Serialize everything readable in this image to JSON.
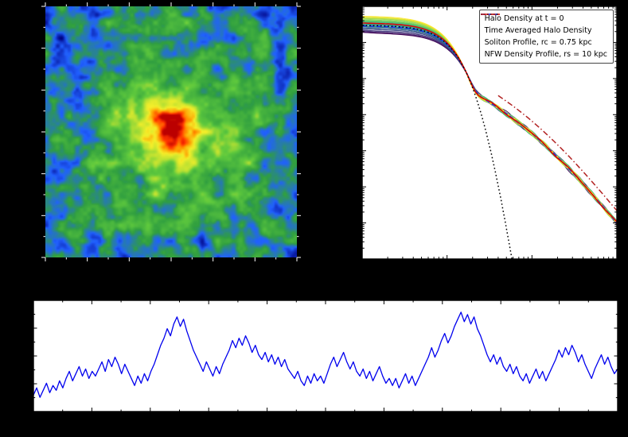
{
  "figure": {
    "background": "#000000",
    "panel_count": 3,
    "description": "Three-panel scientific figure: projected halo density map (top left), radial density profiles on log-log axes with legend (top right), and central density time series (bottom)."
  },
  "chart_data": [
    {
      "id": "density-map",
      "type": "heatmap",
      "title": "",
      "description": "2D projected density field of a fuzzy dark matter halo: turbulent granular interference pattern, green/yellow medium density, blue low-density filaments, compact red soliton core at center.",
      "seed": 1337,
      "field": {
        "base": 0.2,
        "core_amp": 0.52,
        "core_sigma": 0.13,
        "halo_amp": 0.27,
        "halo_sigma": 0.42,
        "noise_amp": 0.3
      },
      "noise_octaves": [
        [
          16,
          0.5
        ],
        [
          32,
          0.33
        ],
        [
          64,
          0.17
        ]
      ],
      "colormap_stops": [
        [
          0.0,
          "#000080"
        ],
        [
          0.16,
          "#2060ff"
        ],
        [
          0.32,
          "#2f9e3f"
        ],
        [
          0.5,
          "#5fc93d"
        ],
        [
          0.62,
          "#b8e032"
        ],
        [
          0.73,
          "#f4ee2a"
        ],
        [
          0.83,
          "#ff9900"
        ],
        [
          0.92,
          "#ff3300"
        ],
        [
          1.0,
          "#bb0000"
        ]
      ]
    },
    {
      "id": "density-profiles",
      "type": "line",
      "x_scale": "log",
      "y_scale": "log",
      "xlim": [
        0.1,
        100
      ],
      "ylim": [
        100,
        1000000000
      ],
      "xlabel": "",
      "ylabel": "",
      "grid": false,
      "model": {
        "soliton": {
          "rho0": 300000000.0,
          "rc": 0.75,
          "shape_coeff": 0.091,
          "shape_power": 8
        },
        "nfw": {
          "rhos": 1200000.0,
          "rs": 10
        },
        "nfw_line_scale": 2.2,
        "nfw_line_r_range": [
          4,
          100
        ],
        "soliton_line_r_range": [
          0.1,
          7
        ]
      },
      "r_kpc": [
        0.1,
        0.15,
        0.2,
        0.3,
        0.5,
        0.7,
        1,
        1.5,
        2,
        3,
        4,
        5,
        7,
        10,
        15,
        20,
        30,
        50,
        70,
        100
      ],
      "series": [
        {
          "name": "Halo Density at t = 0",
          "style": "solid",
          "color": "#e00000",
          "width": 1.5,
          "values": [
            330000000.0,
            325000000.0,
            320000000.0,
            300000000.0,
            250000000.0,
            190000000.0,
            105000000.0,
            30000000.0,
            6800000.0,
            2500000.0,
            1600000.0,
            1100000.0,
            610000.0,
            310000.0,
            130000.0,
            69000.0,
            26000.0,
            6900.0,
            3100.0,
            1000.0
          ]
        },
        {
          "name": "Time Averaged Halo Density",
          "style": "dashed",
          "color": "#1630ee",
          "width": 1.5,
          "values": [
            290000000.0,
            287000000.0,
            280000000.0,
            262000000.0,
            215000000.0,
            160000000.0,
            90000000.0,
            25000000.0,
            5800000.0,
            2400000.0,
            1550000.0,
            1080000.0,
            590000.0,
            300000.0,
            130000.0,
            67000.0,
            25000.0,
            6700.0,
            3000.0,
            990.0
          ]
        },
        {
          "name": "Soliton Profile, rc = 0.75 kpc",
          "style": "dotted",
          "color": "#000000",
          "width": 1.5,
          "values": [
            296000000.0,
            291000000.0,
            285000000.0,
            267000000.0,
            219000000.0,
            163000000.0,
            90000000.0,
            25000000.0,
            5500000.0,
            230000.0,
            11000.0,
            720.0,
            7.4,
            null,
            null,
            null,
            null,
            null,
            null,
            null
          ]
        },
        {
          "name": "NFW Density Profile, rs = 10 kpc",
          "style": "dashdot",
          "color": "#b22222",
          "width": 1.5,
          "values": [
            null,
            null,
            null,
            null,
            null,
            null,
            null,
            null,
            null,
            null,
            3400000.0,
            2350000.0,
            1300000.0,
            660000.0,
            280000.0,
            150000.0,
            55000.0,
            15000.0,
            6500.0,
            2200.0
          ]
        }
      ],
      "ensemble": {
        "count": 26,
        "seed": 77,
        "core_density_multiplier_range": [
          0.6,
          1.8
        ],
        "tail_wiggle_dex": 0.09,
        "colormap_stops": [
          "#440154",
          "#414487",
          "#2a788e",
          "#22a884",
          "#7ad151",
          "#fde725"
        ],
        "description": "Bundle of instantaneous halo density profiles over many snapshots, colored purple (low core density) to yellow (high core density)."
      },
      "legend": {
        "position": "upper right",
        "entries": [
          {
            "label": "Halo Density at t = 0",
            "color": "#e00000",
            "style": "solid"
          },
          {
            "label": "Time Averaged Halo Density",
            "color": "#1630ee",
            "style": "dashed"
          },
          {
            "label": "Soliton Profile, rc = 0.75 kpc",
            "color": "#000000",
            "style": "dotted"
          },
          {
            "label": "NFW Density Profile, rs = 10 kpc",
            "color": "#b22222",
            "style": "dashdot"
          }
        ]
      }
    },
    {
      "id": "central-density-timeseries",
      "type": "line",
      "color": "#0000ee",
      "width": 1.3,
      "xlabel": "",
      "ylabel": "",
      "x_range": [
        0,
        10
      ],
      "ylim": [
        0.6,
        5.3
      ],
      "values": [
        1.3,
        1.6,
        1.2,
        1.5,
        1.8,
        1.4,
        1.7,
        1.5,
        1.9,
        1.6,
        2.0,
        2.3,
        1.9,
        2.2,
        2.5,
        2.1,
        2.4,
        2.0,
        2.3,
        2.1,
        2.4,
        2.7,
        2.3,
        2.8,
        2.5,
        2.9,
        2.6,
        2.2,
        2.6,
        2.3,
        2.0,
        1.7,
        2.1,
        1.8,
        2.2,
        1.9,
        2.3,
        2.6,
        3.0,
        3.4,
        3.7,
        4.1,
        3.8,
        4.3,
        4.6,
        4.2,
        4.5,
        4.0,
        3.6,
        3.2,
        2.9,
        2.6,
        2.3,
        2.7,
        2.4,
        2.1,
        2.5,
        2.2,
        2.6,
        2.9,
        3.2,
        3.6,
        3.3,
        3.7,
        3.4,
        3.8,
        3.5,
        3.1,
        3.4,
        3.0,
        2.8,
        3.1,
        2.7,
        3.0,
        2.6,
        2.9,
        2.5,
        2.8,
        2.4,
        2.2,
        2.0,
        2.3,
        1.9,
        1.7,
        2.1,
        1.8,
        2.2,
        1.9,
        2.1,
        1.8,
        2.2,
        2.6,
        2.9,
        2.5,
        2.8,
        3.1,
        2.7,
        2.4,
        2.7,
        2.3,
        2.1,
        2.4,
        2.0,
        2.3,
        1.9,
        2.2,
        2.5,
        2.1,
        1.8,
        2.0,
        1.7,
        2.0,
        1.6,
        1.9,
        2.2,
        1.8,
        2.1,
        1.7,
        2.0,
        2.3,
        2.6,
        2.9,
        3.3,
        2.9,
        3.2,
        3.6,
        3.9,
        3.5,
        3.8,
        4.2,
        4.5,
        4.8,
        4.4,
        4.7,
        4.3,
        4.6,
        4.1,
        3.8,
        3.4,
        3.0,
        2.7,
        3.0,
        2.6,
        2.9,
        2.5,
        2.3,
        2.6,
        2.2,
        2.5,
        2.1,
        1.9,
        2.2,
        1.8,
        2.1,
        2.4,
        2.0,
        2.3,
        1.9,
        2.2,
        2.5,
        2.8,
        3.2,
        2.9,
        3.3,
        3.0,
        3.4,
        3.1,
        2.7,
        3.0,
        2.6,
        2.3,
        2.0,
        2.4,
        2.7,
        3.0,
        2.6,
        2.9,
        2.5,
        2.2,
        2.4
      ]
    }
  ]
}
